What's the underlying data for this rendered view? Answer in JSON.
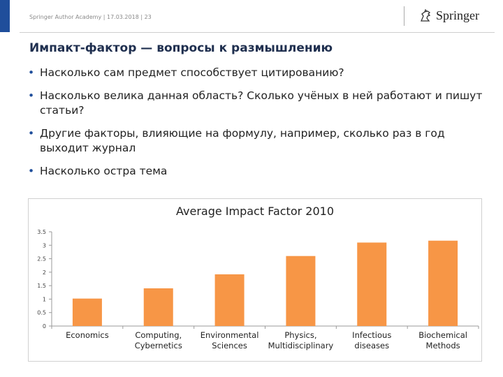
{
  "header": {
    "text": "Springer Author Academy | 17.03.2018 | 23",
    "logo_text": "Springer",
    "logo_icon": "horse-icon"
  },
  "slide": {
    "title": "Импакт-фактор — вопросы к размышлению",
    "bullets": [
      "Насколько сам предмет способствует цитированию?",
      "Насколько велика данная область? Сколько учёных в ней работают и пишут статьи?",
      "Другие факторы, влияющие на формулу, например, сколько раз в год выходит журнал",
      "Насколько остра тема"
    ]
  },
  "colors": {
    "bar": "#f79646",
    "accent": "#1f4e9b"
  },
  "chart_data": {
    "type": "bar",
    "title": "Average Impact Factor 2010",
    "categories": [
      [
        "Economics"
      ],
      [
        "Computing,",
        "Cybernetics"
      ],
      [
        "Environmental",
        "Sciences"
      ],
      [
        "Physics,",
        "Multidisciplinary"
      ],
      [
        "Infectious",
        "diseases"
      ],
      [
        "Biochemical",
        "Methods"
      ]
    ],
    "values": [
      1.02,
      1.4,
      1.92,
      2.6,
      3.1,
      3.17
    ],
    "yticks": [
      "0",
      "0.5",
      "1",
      "1.5",
      "2",
      "2.5",
      "3",
      "3.5"
    ],
    "ylim": [
      0,
      3.5
    ],
    "grid": false,
    "legend": "none"
  }
}
